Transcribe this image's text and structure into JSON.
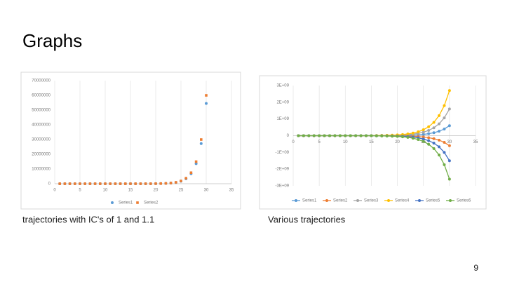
{
  "slide": {
    "title": "Graphs",
    "captions": [
      "trajectories with IC's of 1 and 1.1",
      "Various trajectories"
    ],
    "page_number": "9"
  },
  "chart_data": [
    {
      "type": "scatter",
      "x": [
        1,
        2,
        3,
        4,
        5,
        6,
        7,
        8,
        9,
        10,
        11,
        12,
        13,
        14,
        15,
        16,
        17,
        18,
        19,
        20,
        21,
        22,
        23,
        24,
        25,
        26,
        27,
        28,
        29,
        30
      ],
      "series": [
        {
          "name": "Series1",
          "color": "#5b9bd5",
          "values": [
            0,
            0,
            0,
            1,
            2,
            3,
            6,
            13,
            26,
            52,
            104,
            208,
            416,
            832,
            1663,
            3326,
            6653,
            13306,
            26611,
            53223,
            106445,
            212891,
            425781,
            851563,
            1703125,
            3406250,
            6812500,
            13625000,
            27250000,
            54500000
          ]
        },
        {
          "name": "Series2",
          "color": "#ed7d31",
          "values": [
            0,
            0,
            0,
            1,
            2,
            4,
            7,
            14,
            29,
            57,
            114,
            229,
            458,
            916,
            1831,
            3662,
            7324,
            14648,
            29297,
            58594,
            117188,
            234375,
            468750,
            937500,
            1875000,
            3750000,
            7500000,
            15000000,
            30000000,
            60000000
          ]
        }
      ],
      "xlim": [
        0,
        35
      ],
      "xticks": [
        0,
        5,
        10,
        15,
        20,
        25,
        30,
        35
      ],
      "ylim": [
        0,
        70000000
      ],
      "yticks": [
        0,
        10000000,
        20000000,
        30000000,
        40000000,
        50000000,
        60000000,
        70000000
      ],
      "grid": "x",
      "legend": "bottom"
    },
    {
      "type": "line",
      "x": [
        1,
        2,
        3,
        4,
        5,
        6,
        7,
        8,
        9,
        10,
        11,
        12,
        13,
        14,
        15,
        16,
        17,
        18,
        19,
        20,
        21,
        22,
        23,
        24,
        25,
        26,
        27,
        28,
        29,
        30
      ],
      "series": [
        {
          "name": "Series1",
          "color": "#5b9bd5",
          "values": [
            0,
            0,
            0,
            0,
            0,
            0,
            0,
            0,
            0,
            0,
            0,
            0,
            0,
            0,
            0,
            2000000.0,
            3000000.0,
            4600000.0,
            7000000.0,
            10000000.0,
            16000000.0,
            23000000.0,
            35000000.0,
            53000000.0,
            79000000.0,
            119000000.0,
            178000000.0,
            266000000.0,
            400000000.0,
            600000000.0
          ]
        },
        {
          "name": "Series2",
          "color": "#ed7d31",
          "values": [
            0,
            0,
            0,
            0,
            0,
            0,
            0,
            0,
            0,
            0,
            0,
            0,
            0,
            0,
            0,
            -2000000.0,
            -3000000.0,
            -4600000.0,
            -7000000.0,
            -10000000.0,
            -16000000.0,
            -23000000.0,
            -35000000.0,
            -53000000.0,
            -79000000.0,
            -119000000.0,
            -178000000.0,
            -266000000.0,
            -400000000.0,
            -600000000.0
          ]
        },
        {
          "name": "Series3",
          "color": "#a5a5a5",
          "values": [
            0,
            0,
            0,
            0,
            0,
            0,
            0,
            0,
            0,
            0,
            0,
            0,
            0,
            0,
            0,
            5400000.0,
            8200000.0,
            12300000.0,
            18600000.0,
            27000000.0,
            42000000.0,
            62000000.0,
            94000000.0,
            141000000.0,
            211000000.0,
            317000000.0,
            474000000.0,
            710000000.0,
            1067000000.0,
            1600000000.0
          ]
        },
        {
          "name": "Series4",
          "color": "#ffc000",
          "values": [
            0,
            0,
            0,
            0,
            0,
            0,
            0,
            0,
            0,
            0,
            0,
            0,
            0,
            0,
            0,
            9200000.0,
            13800000.0,
            20800000.0,
            31300000.0,
            46000000.0,
            70000000.0,
            105000000.0,
            159000000.0,
            238000000.0,
            356000000.0,
            535000000.0,
            799000000.0,
            1200000000.0,
            1800000000.0,
            2700000000.0
          ]
        },
        {
          "name": "Series5",
          "color": "#4472c4",
          "values": [
            0,
            0,
            0,
            0,
            0,
            0,
            0,
            0,
            0,
            0,
            0,
            0,
            0,
            0,
            0,
            -5100000.0,
            -7700000.0,
            -11600000.0,
            -17400000.0,
            -26000000.0,
            -39000000.0,
            -59000000.0,
            -89000000.0,
            -132000000.0,
            -198000000.0,
            -297000000.0,
            -444000000.0,
            -666000000.0,
            -1000000000.0,
            -1500000000.0
          ]
        },
        {
          "name": "Series6",
          "color": "#70ad47",
          "values": [
            0,
            0,
            0,
            0,
            0,
            0,
            0,
            0,
            0,
            0,
            0,
            0,
            0,
            0,
            0,
            -8800000.0,
            -13300000.0,
            -20000000.0,
            -30000000.0,
            -44000000.0,
            -68000000.0,
            -101000000.0,
            -153000000.0,
            -229000000.0,
            -343000000.0,
            -515000000.0,
            -770000000.0,
            -1154000000.0,
            -1734000000.0,
            -2600000000.0
          ]
        }
      ],
      "xlim": [
        0,
        35
      ],
      "xticks": [
        0,
        5,
        10,
        15,
        20,
        25,
        30,
        35
      ],
      "ylim": [
        -3000000000,
        3000000000
      ],
      "yticks": [
        {
          "value": -3000000000,
          "label": "-3E+09"
        },
        {
          "value": -2000000000,
          "label": "-2E+09"
        },
        {
          "value": -1000000000,
          "label": "-1E+09"
        },
        0,
        {
          "value": 1000000000,
          "label": "1E+09"
        },
        {
          "value": 2000000000,
          "label": "2E+09"
        },
        {
          "value": 3000000000,
          "label": "3E+09"
        }
      ],
      "grid": "x",
      "legend": "bottom"
    }
  ]
}
